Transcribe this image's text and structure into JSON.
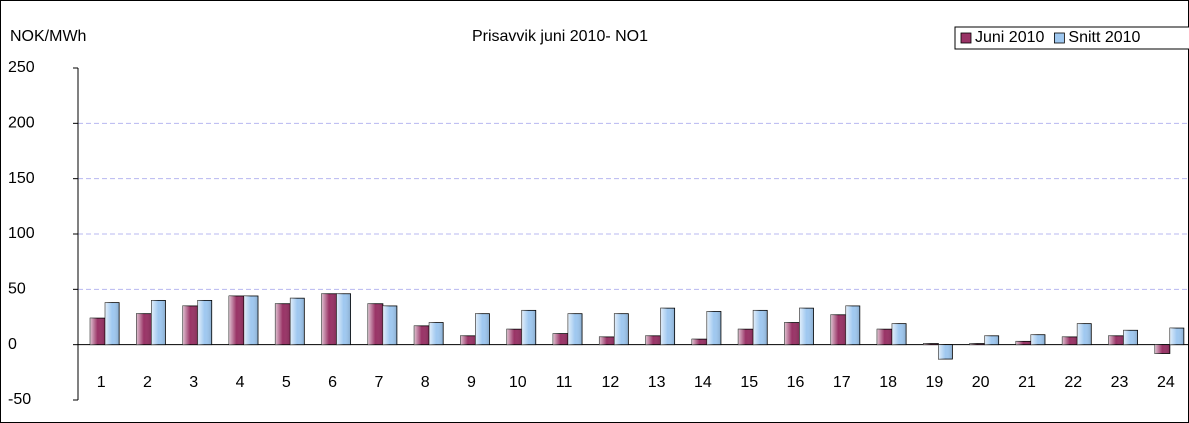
{
  "chart_data": {
    "type": "bar",
    "title": "Prisavvik juni 2010- NO1",
    "y_label": "NOK/MWh",
    "categories": [
      "1",
      "2",
      "3",
      "4",
      "5",
      "6",
      "7",
      "8",
      "9",
      "10",
      "11",
      "12",
      "13",
      "14",
      "15",
      "16",
      "17",
      "18",
      "19",
      "20",
      "21",
      "22",
      "23",
      "24"
    ],
    "series": [
      {
        "name": "Juni 2010",
        "color": "#993366",
        "values": [
          24,
          28,
          35,
          44,
          37,
          46,
          37,
          17,
          8,
          14,
          10,
          7,
          8,
          5,
          14,
          20,
          27,
          14,
          1,
          1,
          3,
          7,
          8,
          -8
        ]
      },
      {
        "name": "Snitt 2010",
        "color": "#9fc8f0",
        "values": [
          38,
          40,
          40,
          44,
          42,
          46,
          35,
          20,
          28,
          31,
          28,
          28,
          33,
          30,
          31,
          33,
          35,
          19,
          -13,
          8,
          9,
          19,
          13,
          15
        ]
      }
    ],
    "ylim": [
      -50,
      250
    ],
    "yticks": [
      -50,
      0,
      50,
      100,
      150,
      200,
      250
    ],
    "grid": true,
    "legend": "top-right"
  }
}
